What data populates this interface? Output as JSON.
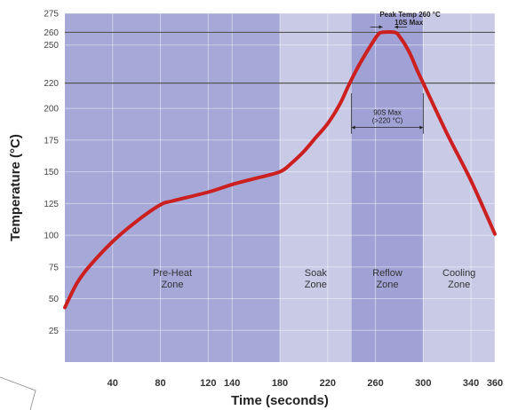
{
  "chart_data": {
    "type": "line",
    "xlabel": "Time (seconds)",
    "ylabel": "Temperature (°C)",
    "xlim": [
      0,
      360
    ],
    "ylim": [
      0,
      275
    ],
    "x_ticks": [
      40,
      80,
      120,
      140,
      180,
      220,
      260,
      300,
      340,
      360
    ],
    "y_ticks": [
      25,
      50,
      75,
      100,
      125,
      150,
      175,
      200,
      220,
      250,
      260,
      275
    ],
    "grid": true,
    "zones": [
      {
        "name": "Pre-Heat",
        "label_line1": "Pre-Heat",
        "label_line2": "Zone",
        "start": 0,
        "end": 180,
        "color": "#a6a8d8"
      },
      {
        "name": "Soak",
        "label_line1": "Soak",
        "label_line2": "Zone",
        "start": 180,
        "end": 240,
        "color": "#c9cae6"
      },
      {
        "name": "Reflow",
        "label_line1": "Reflow",
        "label_line2": "Zone",
        "start": 240,
        "end": 300,
        "color": "#a0a2d5"
      },
      {
        "name": "Cooling",
        "label_line1": "Cooling",
        "label_line2": "Zone",
        "start": 300,
        "end": 360,
        "color": "#c9cae6"
      }
    ],
    "reference_lines": [
      220,
      260
    ],
    "series": [
      {
        "color": "#cc1f1f",
        "points": [
          [
            0,
            43
          ],
          [
            10,
            62
          ],
          [
            20,
            75
          ],
          [
            40,
            95
          ],
          [
            60,
            111
          ],
          [
            80,
            124
          ],
          [
            90,
            127
          ],
          [
            120,
            134
          ],
          [
            140,
            140
          ],
          [
            160,
            145
          ],
          [
            180,
            150
          ],
          [
            190,
            157
          ],
          [
            200,
            166
          ],
          [
            210,
            177
          ],
          [
            220,
            188
          ],
          [
            230,
            203
          ],
          [
            237,
            217
          ],
          [
            245,
            232
          ],
          [
            255,
            248
          ],
          [
            262,
            258
          ],
          [
            266,
            260
          ],
          [
            276,
            260
          ],
          [
            280,
            257
          ],
          [
            288,
            245
          ],
          [
            295,
            230
          ],
          [
            300,
            220
          ],
          [
            320,
            180
          ],
          [
            340,
            143
          ],
          [
            360,
            101
          ]
        ]
      }
    ],
    "annotations": {
      "peak_line1": "Peak Temp 260 °C",
      "peak_line2": "10S Max",
      "above_line1": "90S Max",
      "above_line2": "(>220 °C)"
    }
  }
}
